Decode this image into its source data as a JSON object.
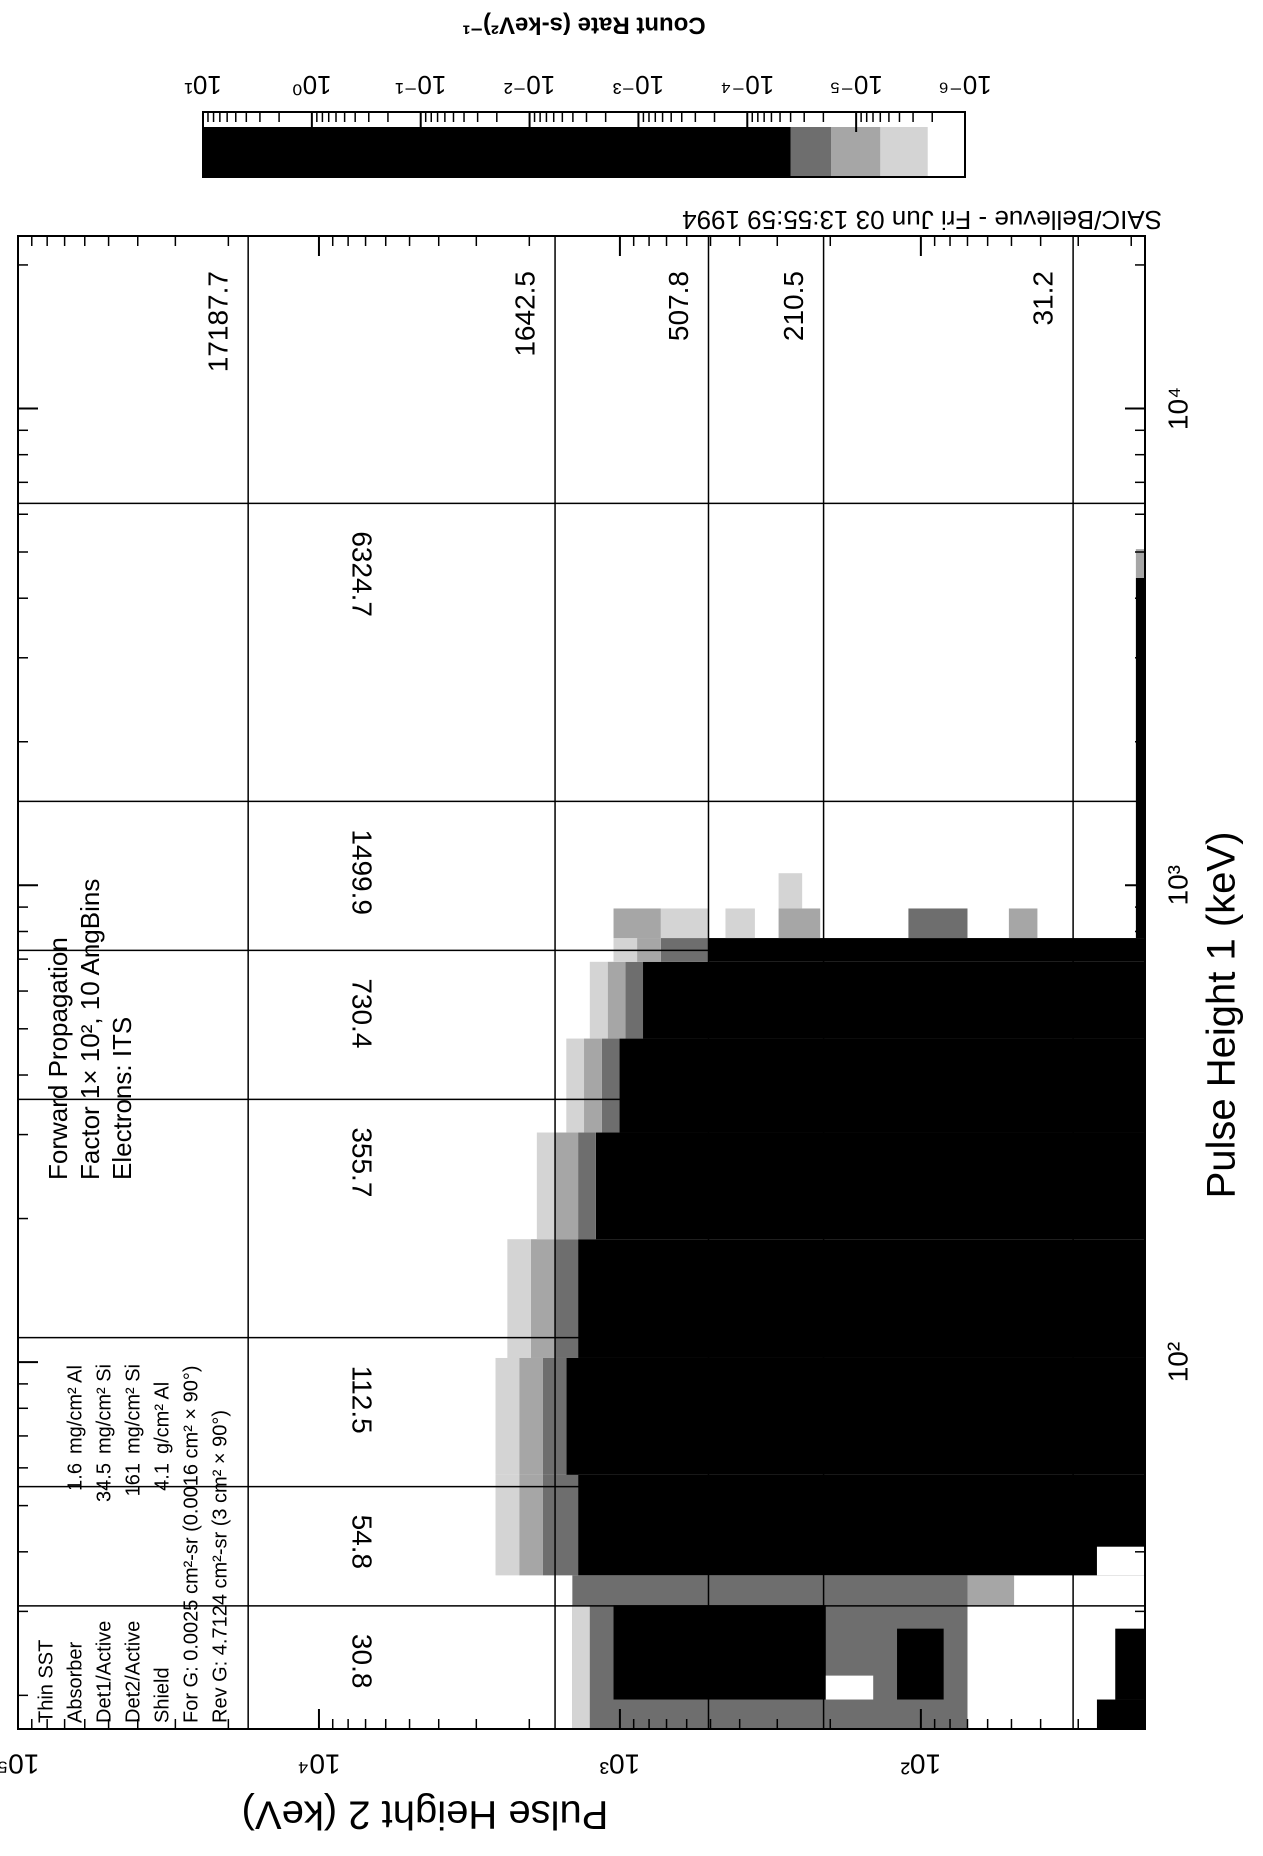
{
  "chart_data": {
    "type": "heatmap",
    "x_label": "Pulse Height 1 (keV)",
    "y_label": "Pulse Height 2 (keV)",
    "xlim": [
      17,
      23000
    ],
    "ylim": [
      18,
      100000
    ],
    "log_x": true,
    "log_y": true,
    "minor_ticks": true,
    "xticks": [
      {
        "value": 100,
        "label": "10²"
      },
      {
        "value": 1000,
        "label": "10³"
      },
      {
        "value": 10000,
        "label": "10⁴"
      }
    ],
    "yticks": [
      {
        "value": 100,
        "label": "10²"
      },
      {
        "value": 1000,
        "label": "10³"
      },
      {
        "value": 10000,
        "label": "10⁴"
      },
      {
        "value": 100000,
        "label": "10⁵"
      }
    ],
    "x_lines": [
      30.8,
      54.8,
      112.5,
      355.7,
      730.4,
      1499.9,
      6324.7
    ],
    "y_lines": [
      17187.7,
      1642.5,
      507.8,
      210.5,
      31.2
    ],
    "colorbar": {
      "label": "Count Rate (s-keV²)⁻¹",
      "lim": [
        1e-06,
        10
      ],
      "ticks": [
        {
          "value": 10,
          "label": "10¹"
        },
        {
          "value": 1,
          "label": "10⁰"
        },
        {
          "value": 0.1,
          "label": "10⁻¹"
        },
        {
          "value": 0.01,
          "label": "10⁻²"
        },
        {
          "value": 0.001,
          "label": "10⁻³"
        },
        {
          "value": 0.0001,
          "label": "10⁻⁴"
        },
        {
          "value": 1e-05,
          "label": "10⁻⁵"
        },
        {
          "value": 1e-06,
          "label": "10⁻⁶"
        }
      ],
      "levels": [
        {
          "from": 1e-06,
          "to": 2.2e-06,
          "color": "#ffffff"
        },
        {
          "from": 2.2e-06,
          "to": 6e-06,
          "color": "#d4d4d4"
        },
        {
          "from": 6e-06,
          "to": 1.7e-05,
          "color": "#a6a6a6"
        },
        {
          "from": 1.7e-05,
          "to": 4e-05,
          "color": "#6e6e6e"
        },
        {
          "from": 4e-05,
          "to": 10,
          "color": "#000000"
        }
      ]
    },
    "band_rows": [
      [
        35.7,
        58,
        1377,
        1805,
        2161,
        2590
      ],
      [
        58,
        102,
        1507,
        1805,
        2161,
        2590
      ],
      [
        102,
        181,
        1377,
        1649,
        1977,
        2366
      ],
      [
        181,
        303,
        1202,
        1377,
        1649,
        1888
      ],
      [
        303,
        477,
        1004,
        1149,
        1316,
        1507
      ],
      [
        477,
        691,
        838,
        959,
        1098,
        1259
      ],
      [
        691,
        775,
        510,
        731,
        877,
        1050
      ]
    ],
    "cells": [
      [
        17,
        35.7,
        70,
        1439,
        3
      ],
      [
        17,
        30.9,
        1259,
        1439,
        1
      ],
      [
        19.6,
        30.9,
        207,
        1050,
        4
      ],
      [
        19.6,
        22.0,
        144,
        207,
        0
      ],
      [
        19.6,
        27.6,
        84,
        120,
        4
      ],
      [
        17,
        19.6,
        18,
        26,
        4
      ],
      [
        19.6,
        27.6,
        18,
        22.6,
        4
      ],
      [
        30.9,
        35.7,
        49,
        70,
        2
      ],
      [
        35.7,
        41,
        18,
        26,
        0
      ],
      [
        775,
        894,
        731,
        1050,
        2
      ],
      [
        775,
        894,
        510,
        731,
        1
      ],
      [
        775,
        894,
        356,
        446,
        1
      ],
      [
        775,
        894,
        216,
        297,
        2
      ],
      [
        894,
        1060,
        248,
        297,
        1
      ],
      [
        775,
        894,
        70,
        110,
        3
      ],
      [
        775,
        894,
        41,
        51,
        2
      ],
      [
        775,
        4410,
        18,
        19.3,
        4
      ],
      [
        4410,
        5070,
        18,
        19.3,
        2
      ]
    ],
    "source": "SAIC/Bellevue - Fri Jun 03 13:55:59 1994",
    "config": {
      "title": "Thin SST",
      "rows": [
        {
          "label": "Absorber",
          "value": "1.6",
          "unit": "mg/cm² Al"
        },
        {
          "label": "Det1/Active",
          "value": "34.5",
          "unit": "mg/cm² Si"
        },
        {
          "label": "Det2/Active",
          "value": "161",
          "unit": "mg/cm² Si"
        },
        {
          "label": "Shield",
          "value": "4.1",
          "unit": "g/cm² Al"
        }
      ],
      "for_g": "For G: 0.0025 cm²-sr (0.0016 cm² × 90°)",
      "rev_g": "Rev G: 4.7124 cm²-sr (3 cm² × 90°)"
    },
    "notes": [
      "Forward Propagation",
      "Factor 1× 10², 10 AngBins",
      "Electrons: ITS"
    ]
  }
}
